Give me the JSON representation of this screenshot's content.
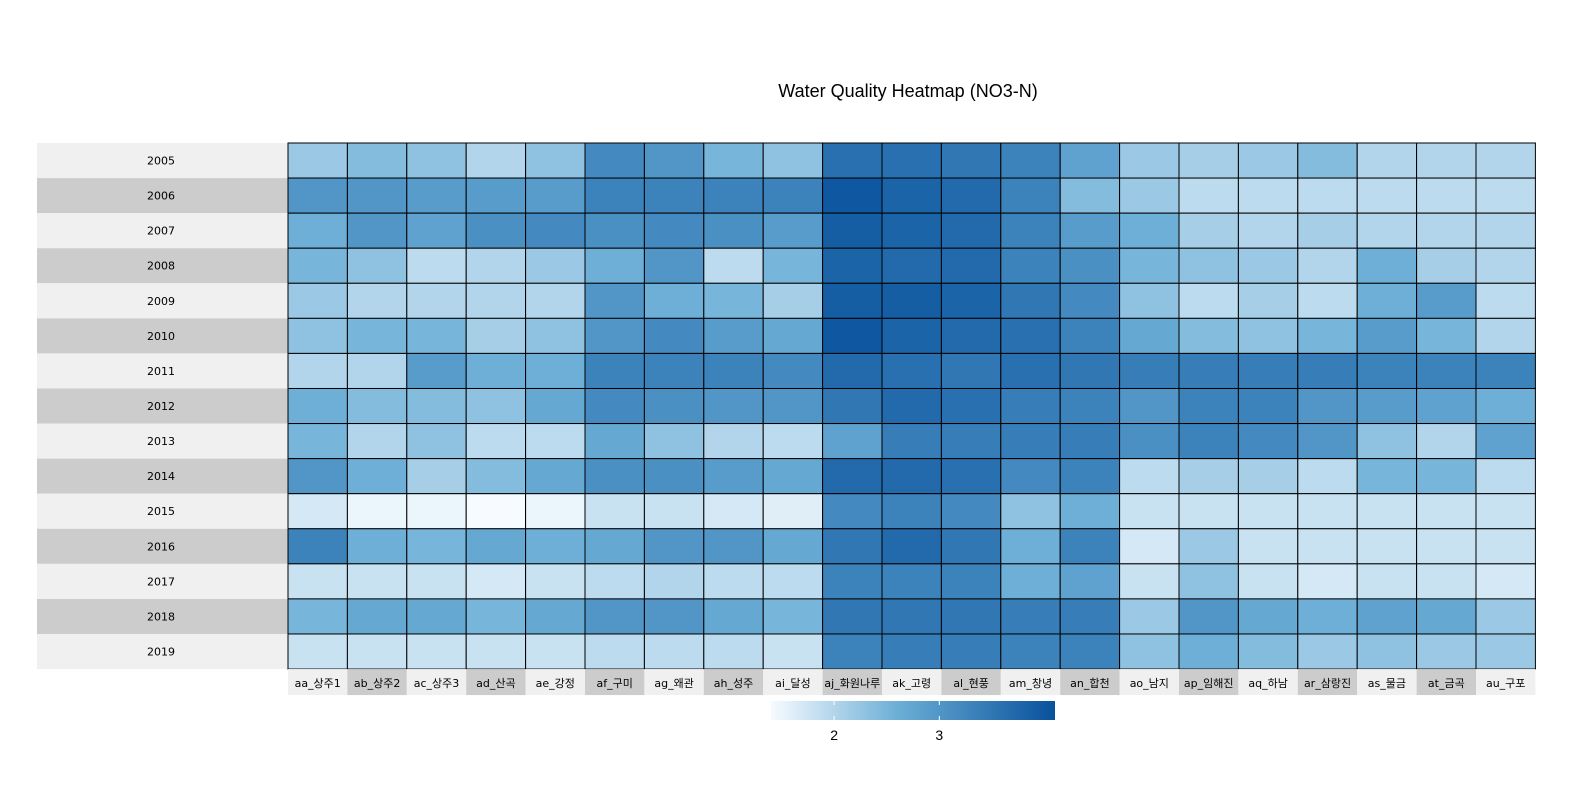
{
  "chart_data": {
    "type": "heatmap",
    "title": "Water Quality Heatmap (NO3-N)",
    "rows": [
      "2005",
      "2006",
      "2007",
      "2008",
      "2009",
      "2010",
      "2011",
      "2012",
      "2013",
      "2014",
      "2015",
      "2016",
      "2017",
      "2018",
      "2019"
    ],
    "columns": [
      "aa_상주1",
      "ab_상주2",
      "ac_상주3",
      "ad_산곡",
      "ae_강정",
      "af_구미",
      "ag_왜관",
      "ah_성주",
      "ai_달성",
      "aj_화원나루",
      "ak_고령",
      "al_현풍",
      "am_창녕",
      "an_합천",
      "ao_남지",
      "ap_임해진",
      "aq_하남",
      "ar_삼랑진",
      "as_물금",
      "at_금곡",
      "au_구포"
    ],
    "values": [
      [
        2.2,
        2.4,
        2.3,
        2.0,
        2.3,
        3.2,
        3.0,
        2.5,
        2.3,
        3.6,
        3.6,
        3.5,
        3.3,
        2.8,
        2.2,
        2.1,
        2.2,
        2.4,
        2.0,
        2.0,
        2.0
      ],
      [
        3.0,
        3.0,
        2.9,
        2.9,
        2.9,
        3.3,
        3.3,
        3.3,
        3.3,
        4.0,
        3.8,
        3.7,
        3.3,
        2.4,
        2.2,
        1.9,
        1.9,
        1.9,
        1.9,
        1.9,
        1.9
      ],
      [
        2.6,
        3.0,
        2.8,
        3.1,
        3.2,
        3.1,
        3.2,
        3.1,
        2.9,
        3.9,
        3.8,
        3.7,
        3.3,
        2.9,
        2.6,
        2.1,
        2.0,
        2.1,
        2.0,
        2.0,
        2.0
      ],
      [
        2.5,
        2.3,
        1.9,
        2.0,
        2.2,
        2.6,
        3.0,
        1.9,
        2.5,
        3.8,
        3.7,
        3.7,
        3.3,
        3.1,
        2.5,
        2.3,
        2.2,
        2.0,
        2.6,
        2.1,
        2.0
      ],
      [
        2.2,
        2.0,
        2.0,
        2.0,
        2.0,
        3.0,
        2.6,
        2.5,
        2.1,
        3.9,
        3.9,
        3.8,
        3.5,
        3.2,
        2.3,
        1.9,
        2.1,
        1.9,
        2.6,
        2.9,
        1.9
      ],
      [
        2.3,
        2.5,
        2.5,
        2.1,
        2.3,
        3.0,
        3.2,
        2.9,
        2.7,
        4.0,
        3.8,
        3.7,
        3.6,
        3.3,
        2.7,
        2.4,
        2.3,
        2.5,
        2.9,
        2.5,
        2.0
      ],
      [
        2.0,
        2.0,
        2.9,
        2.6,
        2.6,
        3.3,
        3.3,
        3.3,
        3.2,
        3.7,
        3.6,
        3.5,
        3.6,
        3.5,
        3.4,
        3.4,
        3.4,
        3.4,
        3.3,
        3.3,
        3.3
      ],
      [
        2.6,
        2.4,
        2.4,
        2.3,
        2.7,
        3.2,
        3.1,
        3.0,
        3.0,
        3.5,
        3.7,
        3.6,
        3.4,
        3.3,
        3.0,
        3.3,
        3.3,
        3.0,
        2.9,
        2.8,
        2.6
      ],
      [
        2.5,
        2.0,
        2.3,
        1.9,
        1.9,
        2.7,
        2.3,
        2.0,
        1.9,
        2.8,
        3.4,
        3.4,
        3.4,
        3.4,
        3.1,
        3.3,
        3.2,
        3.0,
        2.3,
        2.0,
        2.8
      ],
      [
        3.0,
        2.6,
        2.1,
        2.4,
        2.7,
        3.1,
        3.1,
        2.9,
        2.7,
        3.7,
        3.7,
        3.6,
        3.2,
        3.3,
        1.9,
        2.1,
        2.1,
        1.9,
        2.5,
        2.5,
        1.9
      ],
      [
        1.7,
        1.5,
        1.5,
        1.4,
        1.5,
        1.8,
        1.8,
        1.7,
        1.6,
        3.2,
        3.3,
        3.2,
        2.3,
        2.6,
        1.8,
        1.8,
        1.8,
        1.8,
        1.8,
        1.8,
        1.8
      ],
      [
        3.3,
        2.6,
        2.5,
        2.7,
        2.6,
        2.7,
        3.0,
        3.0,
        2.7,
        3.5,
        3.7,
        3.5,
        2.6,
        3.3,
        1.7,
        2.2,
        1.8,
        1.8,
        1.8,
        1.8,
        1.8
      ],
      [
        1.8,
        1.8,
        1.8,
        1.7,
        1.8,
        1.9,
        2.0,
        1.9,
        1.9,
        3.3,
        3.3,
        3.3,
        2.6,
        2.8,
        1.8,
        2.3,
        1.8,
        1.7,
        1.8,
        1.8,
        1.7
      ],
      [
        2.5,
        2.7,
        2.7,
        2.5,
        2.7,
        3.0,
        3.0,
        2.7,
        2.5,
        3.5,
        3.5,
        3.5,
        3.4,
        3.4,
        2.2,
        3.0,
        2.7,
        2.6,
        2.8,
        2.7,
        2.2
      ],
      [
        1.8,
        1.8,
        1.8,
        1.8,
        1.8,
        1.9,
        1.9,
        1.9,
        1.8,
        3.3,
        3.4,
        3.4,
        3.3,
        3.3,
        2.3,
        2.6,
        2.4,
        2.2,
        2.3,
        2.2,
        2.2
      ]
    ],
    "colorbar": {
      "ticks": [
        2,
        3
      ],
      "range": [
        1.4,
        4.1
      ],
      "colors": [
        "#f7fbff",
        "#6baed6",
        "#08519c"
      ]
    },
    "legend_position": "bottom",
    "grid": false
  }
}
